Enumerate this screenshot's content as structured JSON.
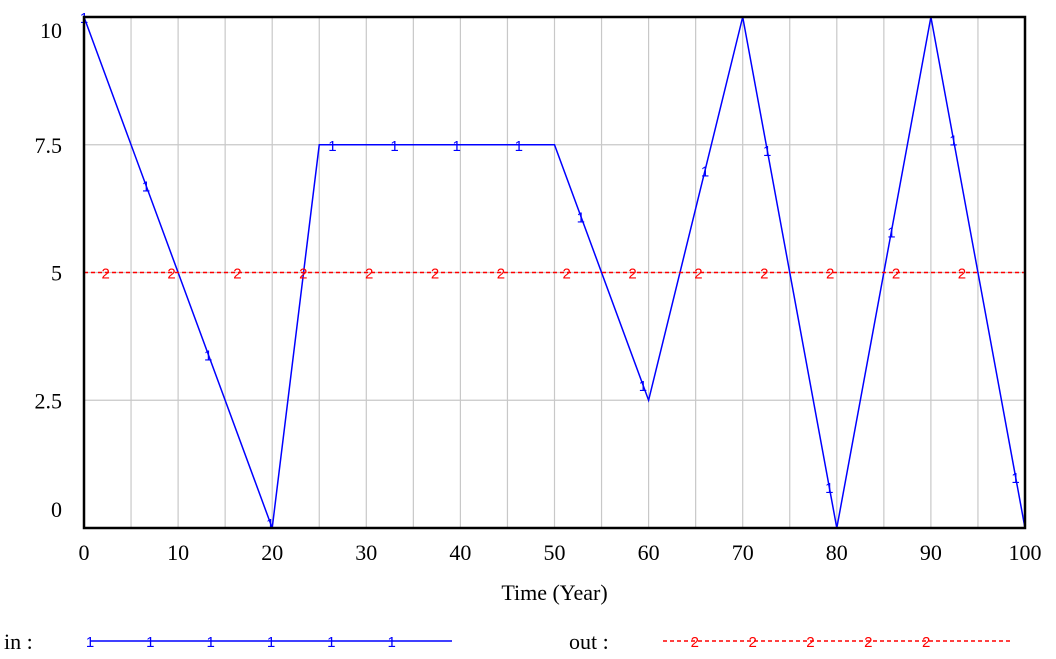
{
  "chart_data": {
    "type": "line",
    "title": "",
    "xlabel": "Time (Year)",
    "ylabel": "",
    "xlim": [
      0,
      100
    ],
    "ylim": [
      0,
      10
    ],
    "x_ticks": [
      0,
      10,
      20,
      30,
      40,
      50,
      60,
      70,
      80,
      90,
      100
    ],
    "x_tick_labels": [
      "0",
      "10",
      "20",
      "30",
      "40",
      "50",
      "60",
      "70",
      "80",
      "90",
      "100"
    ],
    "y_ticks": [
      0,
      2.5,
      5,
      7.5,
      10
    ],
    "y_tick_labels": [
      "0",
      "2.5",
      "5",
      "7.5",
      "10"
    ],
    "grid": true,
    "legend_position": "bottom",
    "series": [
      {
        "name": "in",
        "marker": "1",
        "color": "#0000ff",
        "line_style": "solid",
        "x": [
          0,
          20,
          25,
          50,
          60,
          70,
          80,
          90,
          100
        ],
        "y": [
          10,
          0,
          7.5,
          7.5,
          2.5,
          10,
          0,
          10,
          0
        ]
      },
      {
        "name": "out",
        "marker": "2",
        "color": "#ff0000",
        "line_style": "dashed",
        "x": [
          0,
          100
        ],
        "y": [
          5,
          5
        ]
      }
    ],
    "legend": [
      {
        "label": "in :",
        "series": 0
      },
      {
        "label": "out :",
        "series": 1
      }
    ]
  }
}
